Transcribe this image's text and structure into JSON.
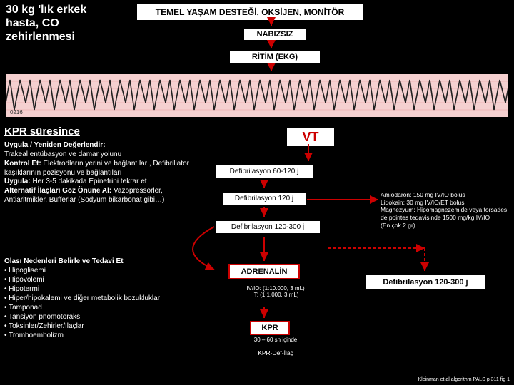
{
  "patient_info": "30 kg 'lık erkek hasta, CO zehirlenmesi",
  "top_box": "TEMEL YAŞAM DESTEĞİ, OKSİJEN, MONİTÖR",
  "nabiz": "NABIZSIZ",
  "ritim": "RİTİM (EKG)",
  "kpr": {
    "title": "KPR süresince",
    "body_html": "<b>Uygula / Yeniden Değerlendir:</b><br>Trakeal entübasyon ve damar yolunu<br><b>Kontrol Et:</b> Elektrodların yerini ve bağlantıları, Defibrillator kaşıklarının pozisyonu ve bağlantıları<br><b>Uygula:</b> Her 3-5 dakikada Epinefrini tekrar et<br><b>Alternatif İlaçları Göz Önüne Al:</b> Vazopressörler, Antiaritmikler, Bufferlar (Sodyum bikarbonat gibi…)"
  },
  "causes": {
    "title": "Olası Nedenleri Belirle ve Tedavi Et",
    "items": [
      "Hipoglisemi",
      "Hipovolemi",
      "Hipotermi",
      "Hiper/hipokalemi ve diğer metabolik bozukluklar",
      "Tamponad",
      "Tansiyon pnömotoraks",
      "Toksinler/Zehirler/İlaçlar",
      "Tromboembolizm"
    ]
  },
  "vt": "VT",
  "defib": {
    "d1": "Defibrilasyon 60-120 j",
    "d2": "Defibrilasyon 120 j",
    "d3": "Defibrilasyon 120-300 j",
    "big": "Defibrilasyon 120-300 j"
  },
  "amio": "Amiodaron; 150 mg IV/IO bolus\nLidokain; 30 mg IV/IO/ET bolus\nMagnezyum; Hipomagnezemide veya torsades de pointes tedavisinde 1500 mg/kg IV/IO\n(En çok 2 gr)",
  "adrenalin": "ADRENALİN",
  "iv": "IV/IO: (1:10.000, 3 mL)\nIT: (1:1.000, 3 mL)",
  "kpr_box": "KPR",
  "kpr_sub": "30 – 60 sn içinde",
  "kpr_sub2": "KPR-Def-İlaç",
  "ref": "Kleinman et al algorithm PALS p 311 fig 1",
  "colors": {
    "bg": "#000000",
    "red": "#cc0000",
    "ecg_bg": "#f5d0d0",
    "ecg_grid": "#e8a0a0",
    "ecg_trace": "#202020"
  }
}
